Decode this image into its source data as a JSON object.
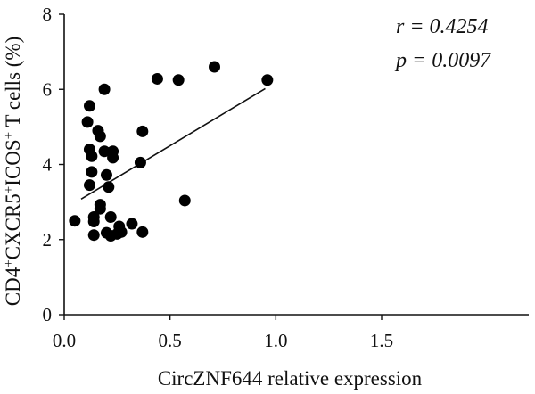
{
  "colors": {
    "ink": "#111111",
    "point": "#000000",
    "background": "#ffffff"
  },
  "chart_data": {
    "type": "scatter",
    "xlabel": "CircZNF644 relative expression",
    "ylabel": "CD4+CXCR5+ICOS+ T cells (%)",
    "xlim": [
      0,
      1.5
    ],
    "ylim": [
      0,
      8
    ],
    "x_ticks": [
      "0.0",
      "0.5",
      "1.0",
      "1.5"
    ],
    "y_ticks": [
      "0",
      "2",
      "4",
      "6",
      "8"
    ],
    "grid": false,
    "annotations": [
      "r = 0.4254",
      "p = 0.0097"
    ],
    "trendline": {
      "x": [
        0.08,
        0.95
      ],
      "y": [
        3.08,
        6.02
      ]
    },
    "points": [
      {
        "x": 0.05,
        "y": 2.5
      },
      {
        "x": 0.12,
        "y": 5.56
      },
      {
        "x": 0.11,
        "y": 5.13
      },
      {
        "x": 0.12,
        "y": 4.4
      },
      {
        "x": 0.13,
        "y": 4.22
      },
      {
        "x": 0.13,
        "y": 3.8
      },
      {
        "x": 0.12,
        "y": 3.45
      },
      {
        "x": 0.14,
        "y": 2.6
      },
      {
        "x": 0.14,
        "y": 2.48
      },
      {
        "x": 0.14,
        "y": 2.12
      },
      {
        "x": 0.16,
        "y": 4.9
      },
      {
        "x": 0.17,
        "y": 4.75
      },
      {
        "x": 0.17,
        "y": 2.93
      },
      {
        "x": 0.17,
        "y": 2.82
      },
      {
        "x": 0.19,
        "y": 6.0
      },
      {
        "x": 0.19,
        "y": 4.35
      },
      {
        "x": 0.2,
        "y": 3.72
      },
      {
        "x": 0.21,
        "y": 3.4
      },
      {
        "x": 0.2,
        "y": 2.18
      },
      {
        "x": 0.23,
        "y": 4.35
      },
      {
        "x": 0.23,
        "y": 4.18
      },
      {
        "x": 0.22,
        "y": 2.6
      },
      {
        "x": 0.22,
        "y": 2.1
      },
      {
        "x": 0.25,
        "y": 2.15
      },
      {
        "x": 0.26,
        "y": 2.35
      },
      {
        "x": 0.27,
        "y": 2.2
      },
      {
        "x": 0.32,
        "y": 2.42
      },
      {
        "x": 0.36,
        "y": 4.05
      },
      {
        "x": 0.37,
        "y": 4.88
      },
      {
        "x": 0.37,
        "y": 2.2
      },
      {
        "x": 0.44,
        "y": 6.28
      },
      {
        "x": 0.54,
        "y": 6.25
      },
      {
        "x": 0.57,
        "y": 3.04
      },
      {
        "x": 0.71,
        "y": 6.6
      },
      {
        "x": 0.96,
        "y": 6.25
      }
    ]
  }
}
